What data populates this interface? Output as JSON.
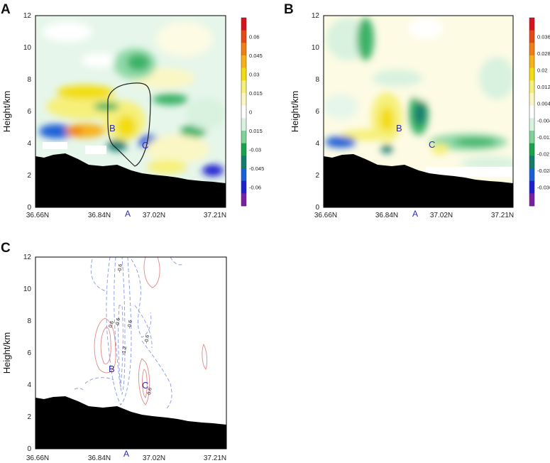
{
  "panels": [
    {
      "letter": "A",
      "ylabel": "Height/km",
      "yticks": [
        "0",
        "2",
        "4",
        "6",
        "8",
        "10",
        "12"
      ],
      "xticks": [
        "36.66N",
        "36.84N",
        "37.02N",
        "37.21N"
      ],
      "xmark": "A",
      "point_labels": [
        "B",
        "C"
      ],
      "colorbar_ticks": [
        "0.06",
        "0.045",
        "0.03",
        "0.015",
        "0",
        "0.015",
        "-0.03",
        "-0.045",
        "-0.06"
      ]
    },
    {
      "letter": "B",
      "ylabel": "Height/km",
      "yticks": [
        "0",
        "2",
        "4",
        "6",
        "8",
        "10",
        "12"
      ],
      "xticks": [
        "36.66N",
        "36.84N",
        "37.02N",
        "37.21N"
      ],
      "xmark": "A",
      "point_labels": [
        "B",
        "C"
      ],
      "colorbar_ticks": [
        "0.036",
        "0.028",
        "0.02",
        "0.012",
        "0.004",
        "-0.004",
        "-0.012",
        "-0.02",
        "-0.028",
        "-0.036"
      ]
    },
    {
      "letter": "C",
      "ylabel": "Height/km",
      "yticks": [
        "0",
        "2",
        "4",
        "6",
        "8",
        "10",
        "12"
      ],
      "xticks": [
        "36.66N",
        "36.84N",
        "37.02N",
        "37.21N"
      ],
      "xmark": "A",
      "point_labels": [
        "B",
        "C"
      ],
      "contour_labels": [
        "-0.6",
        "-0.6",
        "-0.6",
        "-0.6",
        "0.6",
        "0.6",
        "-1.2"
      ]
    }
  ],
  "chart_data": [
    {
      "type": "heatmap",
      "panel": "A",
      "x_range": [
        "36.66N",
        "37.21N"
      ],
      "y_range_km": [
        0,
        12
      ],
      "color_scale": [
        "#7a1fa2",
        "#1f1fd0",
        "#1a5fd8",
        "#127c6e",
        "#18a34a",
        "#7fd39a",
        "#d8f2df",
        "#ffffff",
        "#fbf7c4",
        "#f6f07a",
        "#f2dd10",
        "#f7b21a",
        "#f07f17",
        "#e64a14",
        "#d7121c"
      ],
      "colorbar_range": [
        -0.06,
        0.06
      ],
      "terrain": "black",
      "outlined_region": true
    },
    {
      "type": "heatmap",
      "panel": "B",
      "x_range": [
        "36.66N",
        "37.21N"
      ],
      "y_range_km": [
        0,
        12
      ],
      "colorbar_range": [
        -0.036,
        0.036
      ],
      "terrain": "black"
    },
    {
      "type": "contour",
      "panel": "C",
      "x_range": [
        "36.66N",
        "37.21N"
      ],
      "y_range_km": [
        0,
        12
      ],
      "positive_contour_color": "#e08a8a",
      "negative_contour_color": "#8a9ae0",
      "negative_dashed": true,
      "terrain": "black"
    }
  ]
}
